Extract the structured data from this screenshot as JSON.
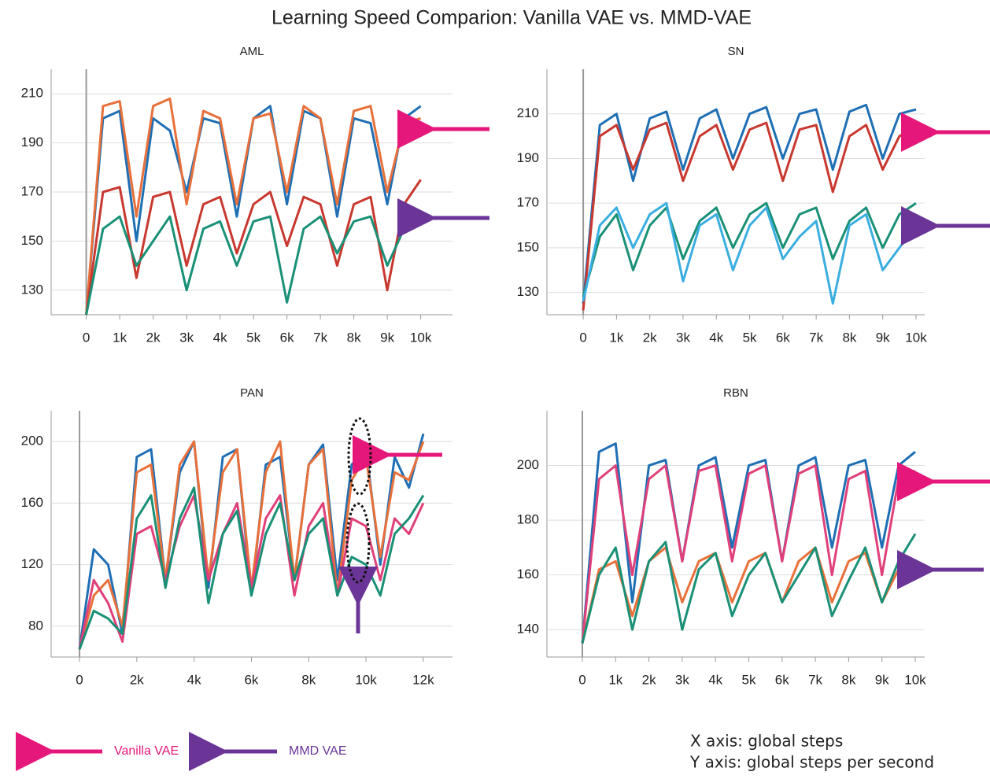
{
  "title": "Learning Speed Comparion: Vanilla VAE vs. MMD-VAE",
  "legend": [
    {
      "name": "Vanilla VAE",
      "color": "#e6177a"
    },
    {
      "name": "MMD VAE",
      "color": "#6a3596"
    }
  ],
  "annotations": [
    "X axis: global steps",
    "Y axis: global steps per second"
  ],
  "chart_data": [
    {
      "type": "line",
      "title": "AML",
      "grid": true,
      "x": [
        0,
        500,
        1000,
        1500,
        2000,
        2500,
        3000,
        3500,
        4000,
        4500,
        5000,
        5500,
        6000,
        6500,
        7000,
        7500,
        8000,
        8500,
        9000,
        9500,
        10000
      ],
      "xlim": [
        -1050,
        10950
      ],
      "ylim": [
        120,
        220
      ],
      "xticks": [
        0,
        {
          "value": 1000,
          "label": "1k"
        },
        {
          "value": 2000,
          "label": "2k"
        },
        {
          "value": 3000,
          "label": "3k"
        },
        {
          "value": 4000,
          "label": "4k"
        },
        {
          "value": 5000,
          "label": "5k"
        },
        {
          "value": 6000,
          "label": "6k"
        },
        {
          "value": 7000,
          "label": "7k"
        },
        {
          "value": 8000,
          "label": "8k"
        },
        {
          "value": 9000,
          "label": "9k"
        },
        {
          "value": 10000,
          "label": "10k"
        }
      ],
      "yticks": [
        130,
        150,
        170,
        190,
        210
      ],
      "series": [
        {
          "color": "#1f6fb4",
          "values": [
            120,
            200,
            203,
            150,
            200,
            195,
            170,
            200,
            198,
            160,
            200,
            205,
            165,
            203,
            200,
            160,
            200,
            198,
            165,
            200,
            205
          ]
        },
        {
          "color": "#e8703a",
          "values": [
            120,
            205,
            207,
            160,
            205,
            208,
            165,
            203,
            200,
            165,
            200,
            202,
            170,
            205,
            200,
            165,
            203,
            205,
            170,
            198,
            200
          ]
        },
        {
          "color": "#c8382f",
          "values": [
            120,
            170,
            172,
            135,
            168,
            170,
            140,
            165,
            168,
            145,
            165,
            170,
            148,
            168,
            165,
            140,
            165,
            168,
            130,
            165,
            175
          ]
        },
        {
          "color": "#1a9077",
          "values": [
            120,
            155,
            160,
            140,
            150,
            160,
            130,
            155,
            158,
            140,
            158,
            160,
            125,
            155,
            160,
            145,
            158,
            160,
            140,
            155,
            160
          ]
        }
      ]
    },
    {
      "type": "line",
      "title": "SN",
      "grid": true,
      "x": [
        0,
        500,
        1000,
        1500,
        2000,
        2500,
        3000,
        3500,
        4000,
        4500,
        5000,
        5500,
        6000,
        6500,
        7000,
        7500,
        8000,
        8500,
        9000,
        9500,
        10000
      ],
      "xlim": [
        -1090,
        10260
      ],
      "ylim": [
        120,
        230
      ],
      "xticks": [
        0,
        {
          "value": 1000,
          "label": "1k"
        },
        {
          "value": 2000,
          "label": "2k"
        },
        {
          "value": 3000,
          "label": "3k"
        },
        {
          "value": 4000,
          "label": "4k"
        },
        {
          "value": 5000,
          "label": "5k"
        },
        {
          "value": 6000,
          "label": "6k"
        },
        {
          "value": 7000,
          "label": "7k"
        },
        {
          "value": 8000,
          "label": "8k"
        },
        {
          "value": 9000,
          "label": "9k"
        },
        {
          "value": 10000,
          "label": "10k"
        }
      ],
      "yticks": [
        130,
        150,
        170,
        190,
        210
      ],
      "series": [
        {
          "color": "#1f6fb4",
          "values": [
            125,
            205,
            210,
            180,
            208,
            211,
            185,
            208,
            212,
            190,
            210,
            213,
            190,
            210,
            212,
            185,
            211,
            214,
            190,
            210,
            212
          ]
        },
        {
          "color": "#c8382f",
          "values": [
            122,
            200,
            205,
            185,
            203,
            206,
            180,
            200,
            205,
            185,
            203,
            206,
            180,
            203,
            205,
            175,
            200,
            205,
            185,
            200,
            204
          ]
        },
        {
          "color": "#1a9077",
          "values": [
            128,
            155,
            165,
            140,
            160,
            168,
            145,
            162,
            168,
            150,
            165,
            170,
            150,
            165,
            168,
            145,
            162,
            168,
            150,
            165,
            170
          ]
        },
        {
          "color": "#3aaee0",
          "values": [
            126,
            160,
            168,
            150,
            165,
            170,
            135,
            160,
            165,
            140,
            160,
            168,
            145,
            155,
            162,
            125,
            160,
            165,
            140,
            150,
            160
          ]
        }
      ]
    },
    {
      "type": "line",
      "title": "PAN",
      "grid": true,
      "x": [
        0,
        500,
        1000,
        1500,
        2000,
        2500,
        3000,
        3500,
        4000,
        4500,
        5000,
        5500,
        6000,
        6500,
        7000,
        7500,
        8000,
        8500,
        9000,
        9500,
        10000,
        10500,
        11000,
        11500,
        12000
      ],
      "xlim": [
        -990,
        13020
      ],
      "ylim": [
        60,
        220
      ],
      "xticks": [
        0,
        {
          "value": 2000,
          "label": "2k"
        },
        {
          "value": 4000,
          "label": "4k"
        },
        {
          "value": 6000,
          "label": "6k"
        },
        {
          "value": 8000,
          "label": "8k"
        },
        {
          "value": 10000,
          "label": "10k"
        },
        {
          "value": 12000,
          "label": "12k"
        }
      ],
      "yticks": [
        80,
        120,
        160,
        200
      ],
      "series": [
        {
          "color": "#1f6fb4",
          "values": [
            65,
            130,
            120,
            75,
            190,
            195,
            110,
            180,
            200,
            105,
            190,
            195,
            100,
            185,
            190,
            110,
            185,
            198,
            110,
            185,
            195,
            120,
            190,
            170,
            205
          ]
        },
        {
          "color": "#e8703a",
          "values": [
            65,
            100,
            110,
            80,
            180,
            185,
            110,
            185,
            200,
            110,
            180,
            195,
            105,
            180,
            200,
            110,
            185,
            195,
            100,
            175,
            190,
            125,
            180,
            175,
            200
          ]
        },
        {
          "color": "#e0407a",
          "values": [
            65,
            110,
            95,
            70,
            140,
            145,
            110,
            145,
            165,
            110,
            140,
            160,
            105,
            150,
            165,
            100,
            145,
            160,
            100,
            150,
            145,
            110,
            150,
            140,
            160
          ]
        },
        {
          "color": "#1a9077",
          "values": [
            65,
            90,
            85,
            75,
            150,
            165,
            105,
            150,
            170,
            95,
            140,
            155,
            100,
            140,
            160,
            110,
            140,
            150,
            100,
            125,
            120,
            100,
            140,
            150,
            165
          ]
        }
      ]
    },
    {
      "type": "line",
      "title": "RBN",
      "grid": true,
      "x": [
        0,
        500,
        1000,
        1500,
        2000,
        2500,
        3000,
        3500,
        4000,
        4500,
        5000,
        5500,
        6000,
        6500,
        7000,
        7500,
        8000,
        8500,
        9000,
        9500,
        10000
      ],
      "xlim": [
        -1064,
        10284
      ],
      "ylim": [
        130,
        220
      ],
      "xticks": [
        0,
        {
          "value": 1000,
          "label": "1k"
        },
        {
          "value": 2000,
          "label": "2k"
        },
        {
          "value": 3000,
          "label": "3k"
        },
        {
          "value": 4000,
          "label": "4k"
        },
        {
          "value": 5000,
          "label": "5k"
        },
        {
          "value": 6000,
          "label": "6k"
        },
        {
          "value": 7000,
          "label": "7k"
        },
        {
          "value": 8000,
          "label": "8k"
        },
        {
          "value": 9000,
          "label": "9k"
        },
        {
          "value": 10000,
          "label": "10k"
        }
      ],
      "yticks": [
        140,
        160,
        180,
        200
      ],
      "series": [
        {
          "color": "#1f6fb4",
          "values": [
            135,
            205,
            208,
            150,
            200,
            202,
            165,
            200,
            203,
            170,
            200,
            202,
            165,
            200,
            203,
            170,
            200,
            202,
            170,
            200,
            205
          ]
        },
        {
          "color": "#e0407a",
          "values": [
            135,
            195,
            200,
            160,
            195,
            200,
            165,
            198,
            200,
            165,
            197,
            200,
            165,
            197,
            200,
            160,
            195,
            198,
            160,
            195,
            198
          ]
        },
        {
          "color": "#e8703a",
          "values": [
            135,
            162,
            165,
            145,
            165,
            170,
            150,
            165,
            168,
            150,
            165,
            168,
            150,
            165,
            170,
            150,
            165,
            168,
            150,
            162,
            163
          ]
        },
        {
          "color": "#1a9077",
          "values": [
            135,
            160,
            170,
            140,
            165,
            172,
            140,
            162,
            168,
            145,
            160,
            168,
            150,
            160,
            170,
            145,
            158,
            170,
            150,
            165,
            175
          ]
        }
      ]
    }
  ]
}
